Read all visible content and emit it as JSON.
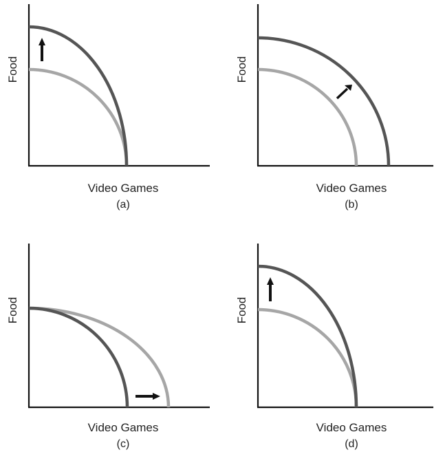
{
  "colors": {
    "dark_curve": "#555555",
    "light_curve": "#a6a6a6",
    "axis": "#111111",
    "arrow": "#111111"
  },
  "panels": [
    {
      "id": "a",
      "y_label": "Food",
      "x_label": "Video Games",
      "caption": "(a)",
      "shift": "vertical intercept rises, horizontal intercept unchanged",
      "arrow_direction": "up"
    },
    {
      "id": "b",
      "y_label": "Food",
      "x_label": "Video Games",
      "caption": "(b)",
      "shift": "whole curve shifts outward",
      "arrow_direction": "up-right"
    },
    {
      "id": "c",
      "y_label": "Food",
      "x_label": "Video Games",
      "caption": "(c)",
      "shift": "horizontal intercept rises, vertical intercept unchanged",
      "arrow_direction": "right"
    },
    {
      "id": "d",
      "y_label": "Food",
      "x_label": "Video Games",
      "caption": "(d)",
      "shift": "vertical intercept rises, horizontal intercept unchanged",
      "arrow_direction": "up"
    }
  ]
}
